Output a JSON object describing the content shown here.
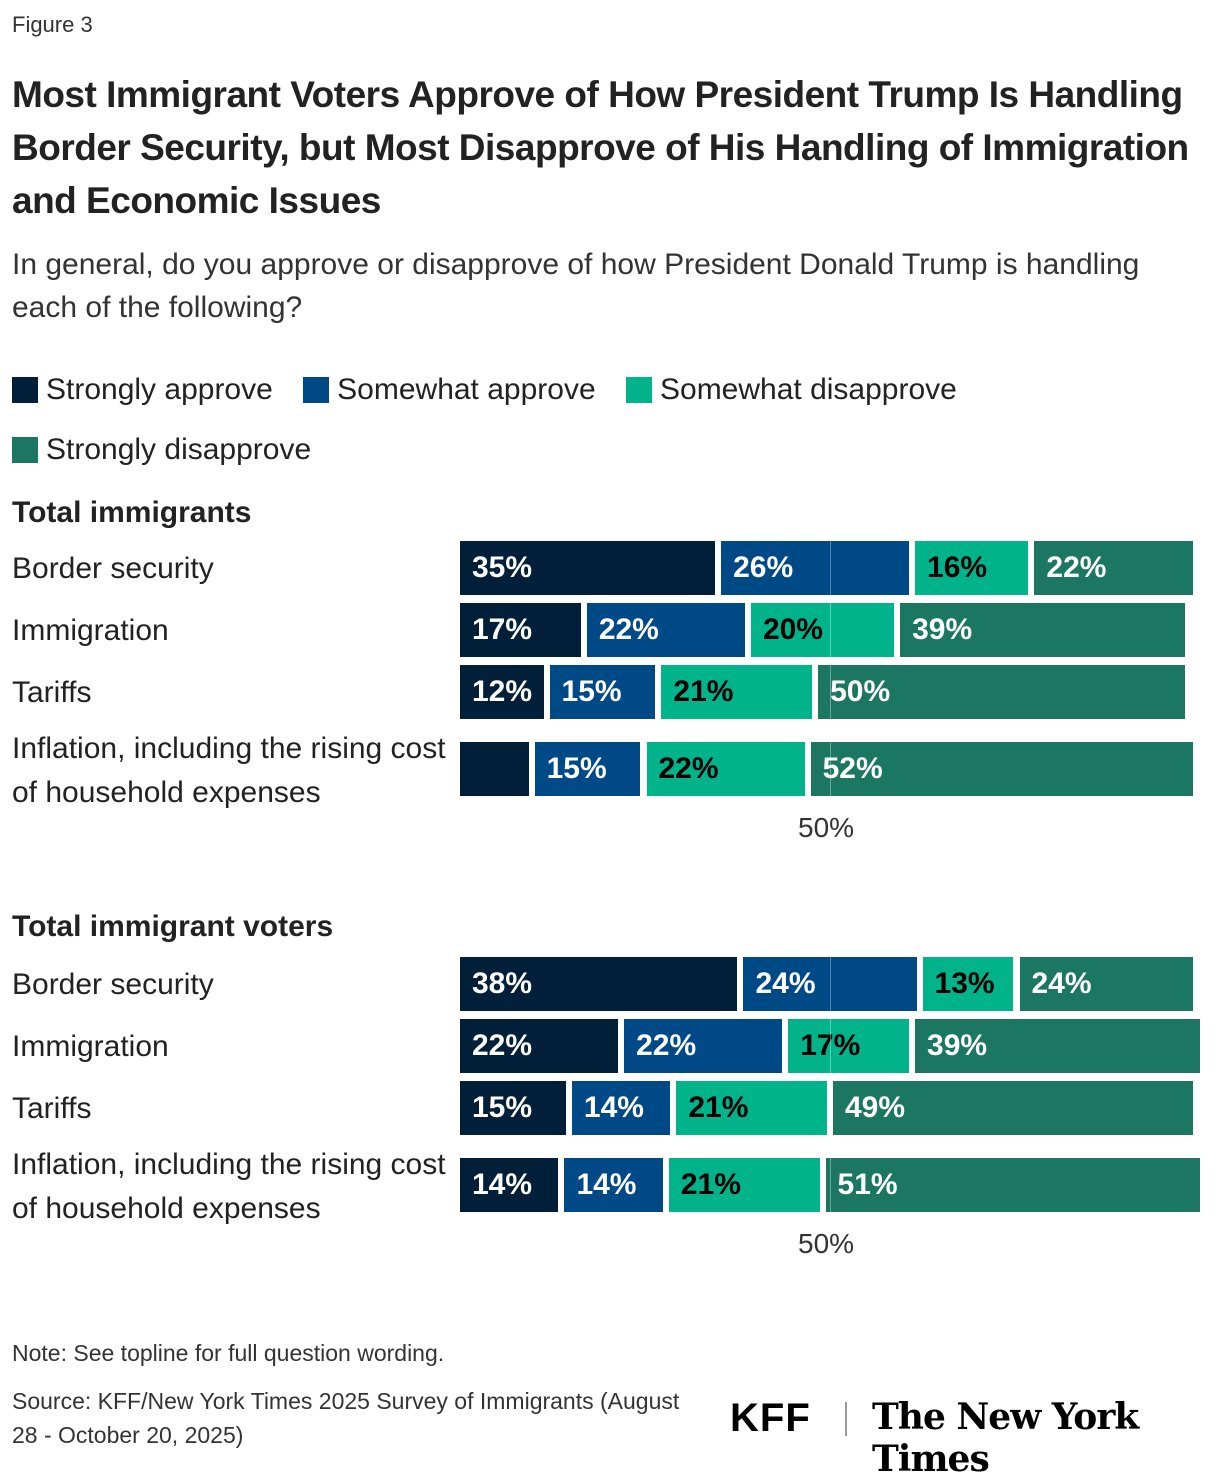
{
  "figure_label": "Figure 3",
  "chart_data": {
    "type": "bar",
    "orientation": "horizontal-stacked",
    "title": "Most Immigrant Voters Approve of How President Trump Is Handling Border Security, but Most Disapprove of His Handling of Immigration and Economic Issues",
    "subtitle": "In general, do you approve or disapprove of how President Donald Trump is handling each of the following?",
    "legend_position": "top",
    "legend": [
      {
        "name": "Strongly approve",
        "color": "#011f38"
      },
      {
        "name": "Somewhat approve",
        "color": "#004987"
      },
      {
        "name": "Somewhat disapprove",
        "color": "#00b38a"
      },
      {
        "name": "Strongly disapprove",
        "color": "#1b7762"
      }
    ],
    "reference_line": {
      "value": 50,
      "label": "50%"
    },
    "groups": [
      {
        "title": "Total immigrants",
        "categories": [
          "Border security",
          "Immigration",
          "Tariffs",
          "Inflation, including the rising cost of household expenses"
        ],
        "series": [
          {
            "name": "Strongly approve",
            "values": [
              35,
              17,
              12,
              10
            ],
            "labels": [
              "35%",
              "17%",
              "12%",
              ""
            ]
          },
          {
            "name": "Somewhat approve",
            "values": [
              26,
              22,
              15,
              15
            ],
            "labels": [
              "26%",
              "22%",
              "15%",
              "15%"
            ]
          },
          {
            "name": "Somewhat disapprove",
            "values": [
              16,
              20,
              21,
              22
            ],
            "labels": [
              "16%",
              "20%",
              "21%",
              "22%"
            ]
          },
          {
            "name": "Strongly disapprove",
            "values": [
              22,
              39,
              50,
              52
            ],
            "labels": [
              "22%",
              "39%",
              "50%",
              "52%"
            ]
          }
        ]
      },
      {
        "title": "Total immigrant voters",
        "categories": [
          "Border security",
          "Immigration",
          "Tariffs",
          "Inflation, including the rising cost of household expenses"
        ],
        "series": [
          {
            "name": "Strongly approve",
            "values": [
              38,
              22,
              15,
              14
            ],
            "labels": [
              "38%",
              "22%",
              "15%",
              "14%"
            ]
          },
          {
            "name": "Somewhat approve",
            "values": [
              24,
              22,
              14,
              14
            ],
            "labels": [
              "24%",
              "22%",
              "14%",
              "14%"
            ]
          },
          {
            "name": "Somewhat disapprove",
            "values": [
              13,
              17,
              21,
              21
            ],
            "labels": [
              "13%",
              "17%",
              "21%",
              "21%"
            ]
          },
          {
            "name": "Strongly disapprove",
            "values": [
              24,
              39,
              49,
              51
            ],
            "labels": [
              "24%",
              "39%",
              "49%",
              "51%"
            ]
          }
        ]
      }
    ]
  },
  "footer": {
    "note": "Note: See topline for full question wording.",
    "source": "Source: KFF/New York Times 2025 Survey of Immigrants (August 28 - October 20, 2025)",
    "logos": [
      "KFF",
      "The New York Times"
    ]
  }
}
